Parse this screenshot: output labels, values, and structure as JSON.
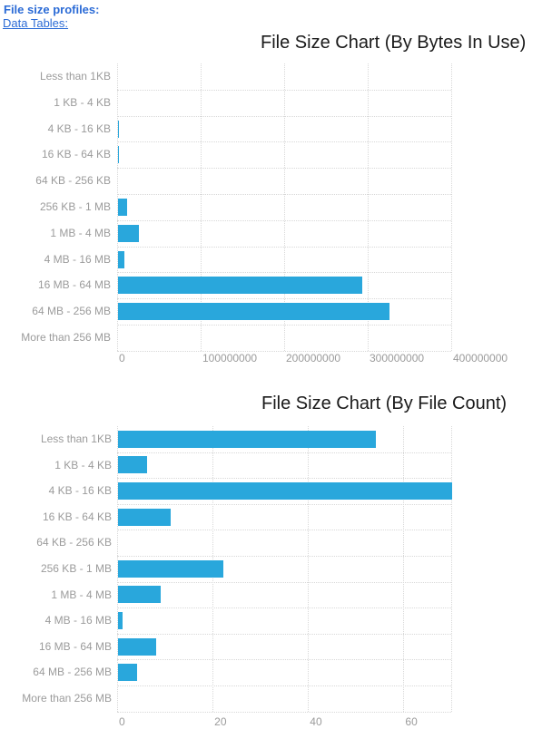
{
  "header": {
    "profiles_label": "File size profiles:",
    "data_tables_label": "Data Tables:"
  },
  "colors": {
    "link": "#2b6bd6",
    "title": "#1a1a1a",
    "bar_fill": "#29a7dc",
    "grid_line": "#d8d8d8",
    "axis_text": "#9b9b9b",
    "background": "#ffffff"
  },
  "chart_data": [
    {
      "type": "bar",
      "orientation": "horizontal",
      "title": "File Size Chart (By Bytes In Use)",
      "categories": [
        "Less than 1KB",
        "1 KB - 4 KB",
        "4 KB - 16 KB",
        "16 KB - 64 KB",
        "64 KB - 256 KB",
        "256 KB - 1 MB",
        "1 MB - 4 MB",
        "4 MB - 16 MB",
        "16 MB - 64 MB",
        "64 MB - 256 MB",
        "More than 256 MB"
      ],
      "values": [
        0,
        0,
        1500000,
        1000000,
        0,
        11000000,
        25000000,
        8000000,
        292000000,
        325000000,
        0
      ],
      "xlim": [
        0,
        400000000
      ],
      "xticks": [
        0,
        100000000,
        200000000,
        300000000,
        400000000
      ],
      "grid": "dotted",
      "legend": false
    },
    {
      "type": "bar",
      "orientation": "horizontal",
      "title": "File Size Chart (By File Count)",
      "categories": [
        "Less than 1KB",
        "1 KB - 4 KB",
        "4 KB - 16 KB",
        "16 KB - 64 KB",
        "64 KB - 256 KB",
        "256 KB - 1 MB",
        "1 MB - 4 MB",
        "4 MB - 16 MB",
        "16 MB - 64 MB",
        "64 MB - 256 MB",
        "More than 256 MB"
      ],
      "values": [
        54,
        6,
        70,
        11,
        0,
        22,
        9,
        1,
        8,
        4,
        0
      ],
      "xlim": [
        0,
        70
      ],
      "xticks": [
        0,
        20,
        40,
        60
      ],
      "grid": "dotted",
      "legend": false
    }
  ]
}
